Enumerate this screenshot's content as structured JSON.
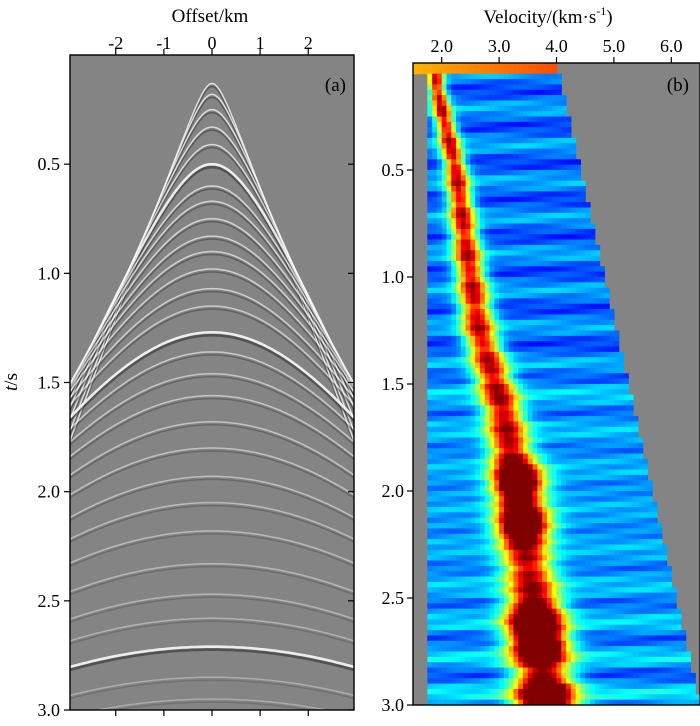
{
  "chart_data": [
    {
      "type": "heatmap",
      "panel_label": "(a)",
      "xlabel": "Offset/km",
      "ylabel_italic": "t",
      "ylabel_unit": "/s",
      "x_ticks": [
        -2,
        -1,
        0,
        1,
        2
      ],
      "x_tick_labels": [
        "-2",
        "-1",
        "0",
        "1",
        "2"
      ],
      "xlim": [
        -2.95,
        2.95
      ],
      "y_ticks": [
        0.5,
        1.0,
        1.5,
        2.0,
        2.5,
        3.0
      ],
      "y_tick_labels": [
        "0.5",
        "1.0",
        "1.5",
        "2.0",
        "2.5",
        "3.0"
      ],
      "ylim": [
        0,
        3.0
      ],
      "colormap": "gray",
      "background_color": "#848484",
      "reflections_t0_s": [
        0.13,
        0.18,
        0.25,
        0.33,
        0.41,
        0.5,
        0.6,
        0.67,
        0.75,
        0.83,
        0.9,
        0.98,
        1.07,
        1.15,
        1.27,
        1.36,
        1.46,
        1.56,
        1.68,
        1.8,
        1.93,
        2.05,
        2.18,
        2.33,
        2.47,
        2.58,
        2.71,
        2.85,
        2.95
      ],
      "strong_reflections_t0_s": [
        0.5,
        0.85,
        1.27,
        2.71
      ]
    },
    {
      "type": "heatmap",
      "panel_label": "(b)",
      "xlabel": "Velocity/(km·s",
      "xlabel_exponent": "-1",
      "xlabel_close": ")",
      "x_ticks": [
        2.0,
        3.0,
        4.0,
        5.0,
        6.0
      ],
      "x_tick_labels": [
        "2.0",
        "3.0",
        "4.0",
        "5.0",
        "6.0"
      ],
      "xlim": [
        1.5,
        6.5
      ],
      "y_ticks": [
        0.5,
        1.0,
        1.5,
        2.0,
        2.5,
        3.0
      ],
      "y_tick_labels": [
        "0.5",
        "1.0",
        "1.5",
        "2.0",
        "2.5",
        "3.0"
      ],
      "ylim": [
        0,
        3.0
      ],
      "colormap": "jet",
      "background_color": "#848484",
      "scan_edge_velocity_top": 4.0,
      "scan_edge_velocity_bottom": 6.5,
      "semblance_peaks": [
        {
          "t": 0.1,
          "v": 1.9
        },
        {
          "t": 0.5,
          "v": 2.25
        },
        {
          "t": 0.9,
          "v": 2.45
        },
        {
          "t": 1.25,
          "v": 2.65
        },
        {
          "t": 1.6,
          "v": 3.05
        },
        {
          "t": 1.95,
          "v": 3.3
        },
        {
          "t": 2.2,
          "v": 3.4
        },
        {
          "t": 2.5,
          "v": 3.6
        },
        {
          "t": 2.75,
          "v": 3.7
        },
        {
          "t": 2.95,
          "v": 3.8
        }
      ],
      "high_energy_zones": [
        {
          "t": 1.95,
          "v": 3.35,
          "strength": 1.0
        },
        {
          "t": 2.15,
          "v": 3.45,
          "strength": 1.0
        },
        {
          "t": 2.6,
          "v": 3.6,
          "strength": 0.9
        },
        {
          "t": 2.72,
          "v": 3.7,
          "strength": 1.0
        },
        {
          "t": 2.96,
          "v": 3.8,
          "strength": 0.95
        }
      ]
    }
  ]
}
